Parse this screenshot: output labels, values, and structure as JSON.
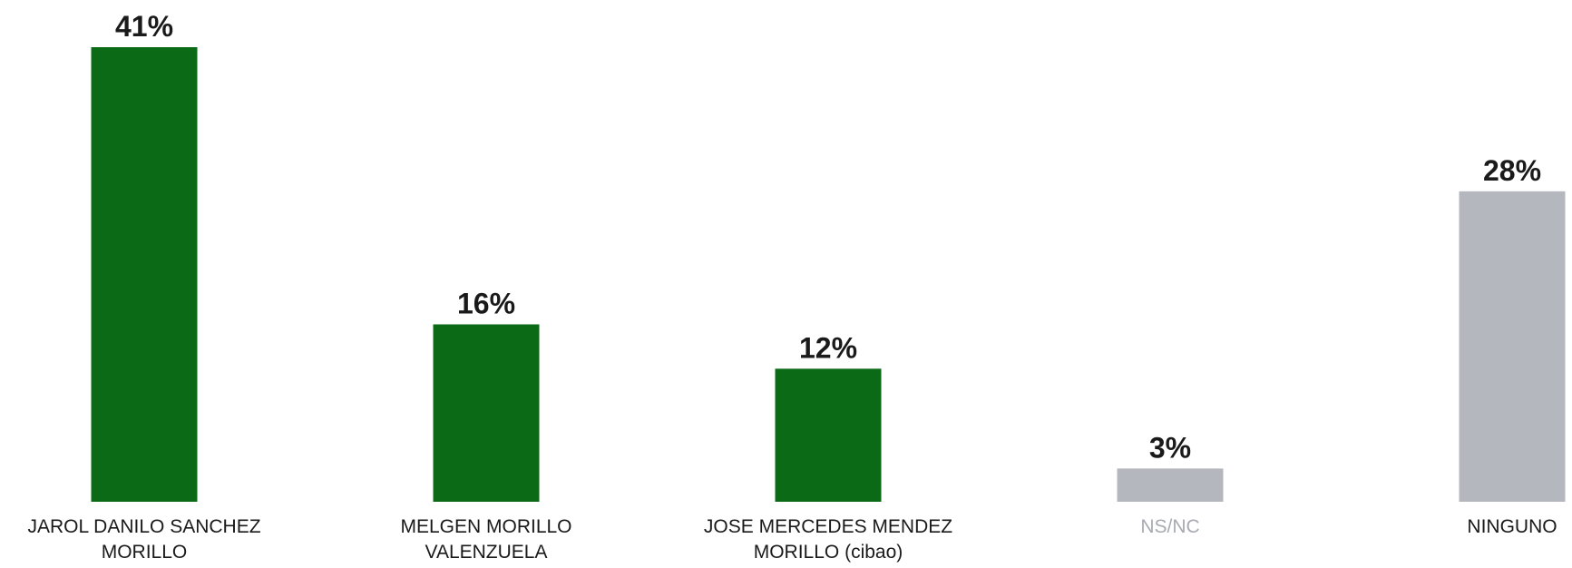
{
  "colors": {
    "candidate": "#0b6a16",
    "other": "#b4b7be",
    "value_text": "#1a1a1a",
    "category_text": "#1a1a1a",
    "category_text_muted": "#a8abb2"
  },
  "chart_data": {
    "type": "bar",
    "categories": [
      "JAROL DANILO SANCHEZ MORILLO",
      "MELGEN MORILLO VALENZUELA",
      "JOSE MERCEDES MENDEZ MORILLO (cibao)",
      "NS/NC",
      "NINGUNO"
    ],
    "category_label_lines": [
      [
        "JAROL DANILO SANCHEZ",
        "MORILLO"
      ],
      [
        "MELGEN MORILLO",
        "VALENZUELA"
      ],
      [
        "JOSE MERCEDES MENDEZ",
        "MORILLO (cibao)"
      ],
      [
        "NS/NC"
      ],
      [
        "NINGUNO"
      ]
    ],
    "values": [
      41,
      16,
      12,
      3,
      28
    ],
    "value_labels": [
      "41%",
      "16%",
      "12%",
      "3%",
      "28%"
    ],
    "bar_color_keys": [
      "candidate",
      "candidate",
      "candidate",
      "other",
      "other"
    ],
    "category_text_keys": [
      "category_text",
      "category_text",
      "category_text",
      "category_text_muted",
      "category_text"
    ],
    "title": "",
    "xlabel": "",
    "ylabel": "",
    "ylim": [
      0,
      41
    ],
    "grid": false,
    "legend": "none"
  }
}
